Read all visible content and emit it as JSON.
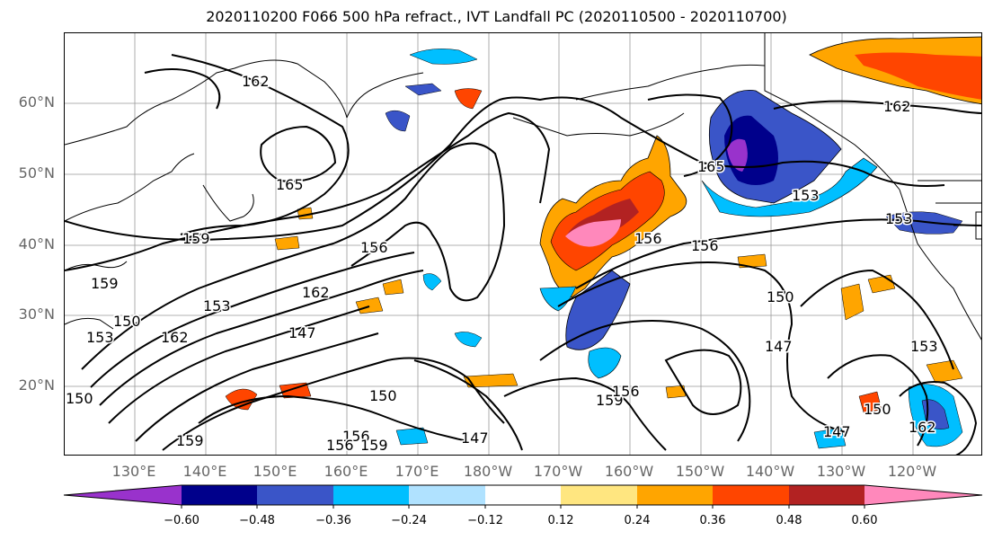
{
  "title": "2020110200 F066 500 hPa refract., IVT Landfall PC (2020110500 - 2020110700)",
  "lat_labels": [
    "60°N",
    "50°N",
    "40°N",
    "30°N",
    "20°N"
  ],
  "lon_labels": [
    "130°E",
    "140°E",
    "150°E",
    "160°E",
    "170°E",
    "180°W",
    "170°W",
    "160°W",
    "150°W",
    "140°W",
    "130°W",
    "120°W"
  ],
  "colorbar": {
    "ticks": [
      "−0.60",
      "−0.48",
      "−0.36",
      "−0.24",
      "−0.12",
      "0.12",
      "0.24",
      "0.36",
      "0.48",
      "0.60"
    ],
    "colors": [
      "#9932cc",
      "#00008b",
      "#3a55c8",
      "#00bfff",
      "#b0e2ff",
      "#ffffff",
      "#ffe680",
      "#ffa500",
      "#ff4500",
      "#b22222",
      "#ff88bb"
    ]
  },
  "contour_labels": [
    "162",
    "165",
    "159",
    "156",
    "153",
    "150",
    "162",
    "147",
    "156",
    "165",
    "153",
    "156",
    "150",
    "147",
    "153",
    "162",
    "159",
    "150",
    "162",
    "159",
    "156",
    "147",
    "159",
    "156",
    "150",
    "147",
    "162",
    "153",
    "150",
    "156",
    "159",
    "153"
  ],
  "map": {
    "lat_range": [
      10,
      70
    ],
    "lon_range_deg_east": [
      120,
      250
    ],
    "grid": true,
    "coastlines": true
  }
}
